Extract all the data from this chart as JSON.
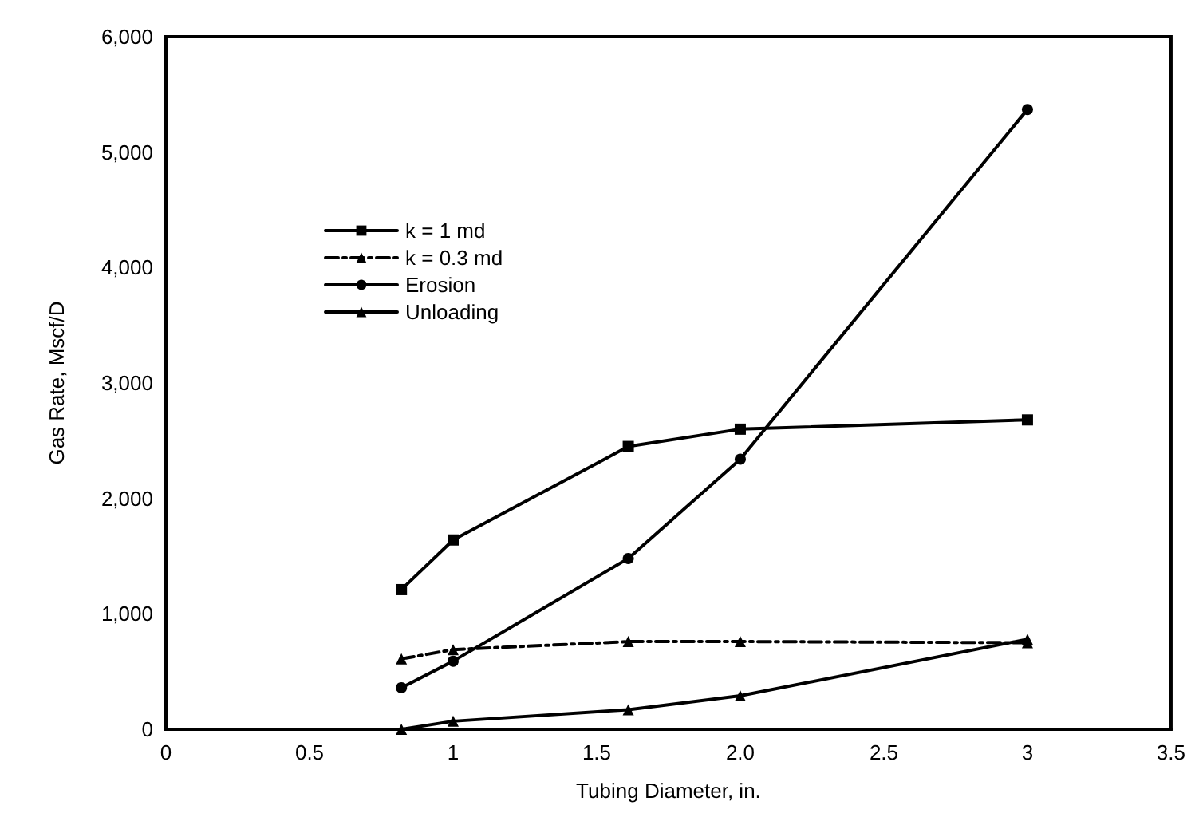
{
  "chart_data": {
    "type": "line",
    "xlabel": "Tubing Diameter, in.",
    "ylabel": "Gas Rate, Mscf/D",
    "xlim": [
      0,
      3.5
    ],
    "xticks": [
      0,
      0.5,
      1,
      1.5,
      {
        "value": 2,
        "label": "2.0"
      },
      2.5,
      3,
      3.5
    ],
    "ylim": [
      0,
      6000
    ],
    "yticks": [
      0,
      {
        "value": 1000,
        "label": "1,000"
      },
      {
        "value": 2000,
        "label": "2,000"
      },
      {
        "value": 3000,
        "label": "3,000"
      },
      {
        "value": 4000,
        "label": "4,000"
      },
      {
        "value": 5000,
        "label": "5,000"
      },
      {
        "value": 6000,
        "label": "6,000"
      }
    ],
    "grid": false,
    "legend": "top left",
    "series": [
      {
        "name": "k = 1 md",
        "color": "#000000",
        "marker": "square",
        "line_style": "solid",
        "x": [
          0.82,
          1.0,
          1.61,
          2.0,
          3.0
        ],
        "values": [
          1210,
          1640,
          2450,
          2600,
          2680
        ]
      },
      {
        "name": "k = 0.3 md",
        "color": "#000000",
        "marker": "triangle",
        "line_style": "dashed",
        "x": [
          0.82,
          1.0,
          1.61,
          2.0,
          3.0
        ],
        "values": [
          610,
          690,
          760,
          760,
          750
        ]
      },
      {
        "name": "Erosion",
        "color": "#000000",
        "marker": "circle",
        "line_style": "solid",
        "x": [
          0.82,
          1.0,
          1.61,
          2.0,
          3.0
        ],
        "values": [
          360,
          590,
          1480,
          2340,
          5370
        ]
      },
      {
        "name": "Unloading",
        "color": "#000000",
        "marker": "triangle",
        "line_style": "solid",
        "x": [
          0.82,
          1.0,
          1.61,
          2.0,
          3.0
        ],
        "values": [
          0,
          70,
          170,
          290,
          780
        ]
      }
    ]
  }
}
